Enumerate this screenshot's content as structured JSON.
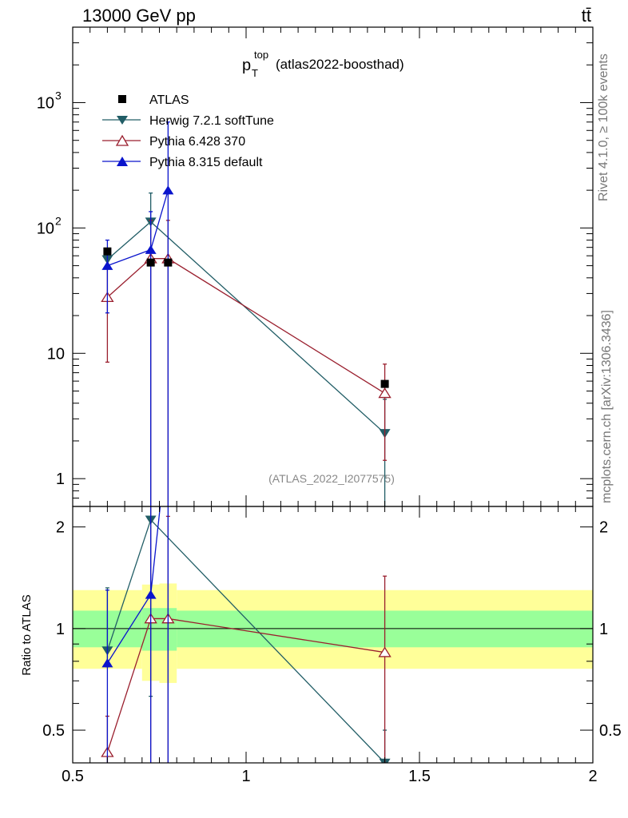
{
  "header": {
    "left": "13000 GeV pp",
    "right": "tt̄"
  },
  "side_labels": {
    "rivet": "Rivet 4.1.0, ≥ 100k events",
    "mcplots": "mcplots.cern.ch [arXiv:1306.3436]"
  },
  "chart_data": {
    "type": "line",
    "title_main": "p",
    "title_sup": "top",
    "title_sub": "T",
    "title_suffix": "(atlas2022-boosthad)",
    "watermark": "(ATLAS_2022_I2077575)",
    "xlabel": "",
    "ylabel_ratio": "Ratio to ATLAS",
    "xlim": [
      0.5,
      2.0
    ],
    "ylim_main": [
      0.6,
      4000
    ],
    "ylim_ratio": [
      0.4,
      2.3
    ],
    "yscale_main": "log",
    "yscale_ratio": "log",
    "x_ticks": [
      {
        "v": 0.5,
        "l": "0.5"
      },
      {
        "v": 1.0,
        "l": "1"
      },
      {
        "v": 1.5,
        "l": "1.5"
      },
      {
        "v": 2.0,
        "l": "2"
      }
    ],
    "y_ticks_main": [
      {
        "v": 1,
        "l": "1"
      },
      {
        "v": 10,
        "l": "10"
      },
      {
        "v": 100,
        "l": "10",
        "sup": "2"
      },
      {
        "v": 1000,
        "l": "10",
        "sup": "3"
      }
    ],
    "y_ticks_ratio": [
      {
        "v": 0.5,
        "l": "0.5"
      },
      {
        "v": 1,
        "l": "1"
      },
      {
        "v": 2,
        "l": "2"
      }
    ],
    "data": {
      "name": "ATLAS",
      "color": "#000000",
      "points": [
        {
          "x": 0.6,
          "y": 65
        },
        {
          "x": 0.725,
          "y": 53
        },
        {
          "x": 0.775,
          "y": 53
        },
        {
          "x": 1.4,
          "y": 5.7
        }
      ],
      "bands": [
        {
          "x0": 0.5,
          "x1": 0.7,
          "lo1": 0.88,
          "hi1": 1.13,
          "lo2": 0.76,
          "hi2": 1.3
        },
        {
          "x0": 0.7,
          "x1": 0.75,
          "lo1": 0.86,
          "hi1": 1.15,
          "lo2": 0.7,
          "hi2": 1.35
        },
        {
          "x0": 0.75,
          "x1": 0.8,
          "lo1": 0.86,
          "hi1": 1.15,
          "lo2": 0.69,
          "hi2": 1.36
        },
        {
          "x0": 0.8,
          "x1": 2.0,
          "lo1": 0.88,
          "hi1": 1.13,
          "lo2": 0.76,
          "hi2": 1.3
        }
      ]
    },
    "series": [
      {
        "name": "Herwig 7.2.1 softTune",
        "color": "#215d66",
        "marker": "triangle-down",
        "points": [
          {
            "x": 0.6,
            "y": 56,
            "lo": 50,
            "hi": 62,
            "r": 0.86,
            "rlo": 0.77,
            "rhi": 1.32
          },
          {
            "x": 0.725,
            "y": 112,
            "lo": 0.3,
            "hi": 190,
            "r": 2.1,
            "rlo": 0.63,
            "rhi": 2.5
          },
          {
            "x": 1.4,
            "y": 2.3,
            "lo": 0.5,
            "hi": 4.3,
            "r": 0.4,
            "rlo": 0.3,
            "rhi": 0.5
          }
        ]
      },
      {
        "name": "Pythia 6.428 370",
        "color": "#9a1f2e",
        "marker": "triangle-up-open",
        "points": [
          {
            "x": 0.6,
            "y": 28,
            "lo": 8.5,
            "hi": 47,
            "r": 0.43,
            "rlo": 0.3,
            "rhi": 0.55
          },
          {
            "x": 0.725,
            "y": 57,
            "lo": 0.3,
            "hi": 115,
            "r": 1.07,
            "rlo": 0.3,
            "rhi": 2.5
          },
          {
            "x": 0.775,
            "y": 57,
            "lo": 0.3,
            "hi": 115,
            "r": 1.07,
            "rlo": 0.3,
            "rhi": 2.15
          },
          {
            "x": 1.4,
            "y": 4.8,
            "lo": 1.4,
            "hi": 8.2,
            "r": 0.85,
            "rlo": 0.3,
            "rhi": 1.43
          }
        ]
      },
      {
        "name": "Pythia 8.315 default",
        "color": "#0a14cc",
        "marker": "triangle-up",
        "points": [
          {
            "x": 0.6,
            "y": 50,
            "lo": 21,
            "hi": 80,
            "r": 0.79,
            "rlo": 0.3,
            "rhi": 1.3
          },
          {
            "x": 0.725,
            "y": 67,
            "lo": 0.3,
            "hi": 135,
            "r": 1.26,
            "rlo": 0.3,
            "rhi": 2.5
          },
          {
            "x": 0.775,
            "y": 200,
            "lo": 0.3,
            "hi": 700,
            "r": 3.8,
            "rlo": 0.3,
            "rhi": 10
          }
        ]
      }
    ]
  }
}
